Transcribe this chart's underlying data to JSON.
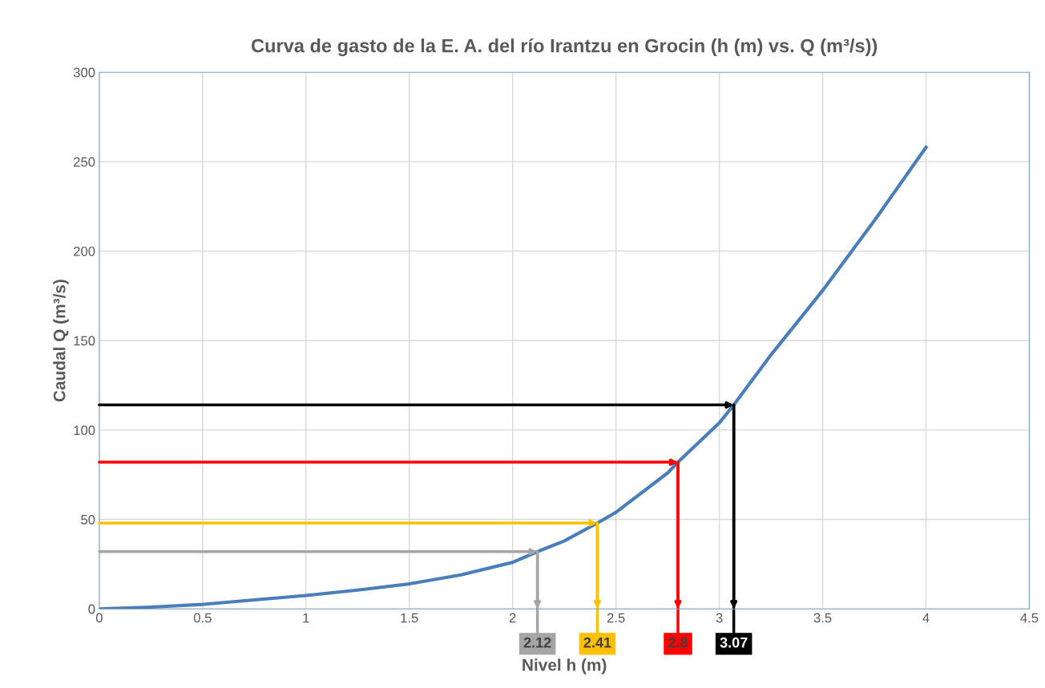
{
  "chart_data": {
    "type": "line",
    "title": "Curva de gasto de la E. A. del río Irantzu en Grocin (h (m) vs. Q (m³/s))",
    "xlabel": "Nivel h (m)",
    "ylabel": "Caudal Q (m³/s)",
    "x": [
      0,
      0.25,
      0.5,
      0.75,
      1,
      1.25,
      1.5,
      1.75,
      2,
      2.12,
      2.25,
      2.41,
      2.5,
      2.75,
      2.8,
      3,
      3.07,
      3.25,
      3.5,
      3.75,
      4
    ],
    "series": [
      {
        "color": "#4a7ebb",
        "values": [
          0,
          1,
          2.5,
          5,
          7.5,
          10.5,
          14,
          19,
          26,
          32,
          38,
          48,
          54,
          76,
          82,
          104,
          114,
          142,
          178,
          217,
          258
        ]
      }
    ],
    "annotations": [
      {
        "text": "2.12",
        "x": 2.12,
        "y": 32
      },
      {
        "text": "2.41",
        "x": 2.41,
        "y": 48
      },
      {
        "text": "2.8",
        "x": 2.8,
        "y": 82
      },
      {
        "text": "3.07",
        "x": 3.07,
        "y": 114
      }
    ],
    "xlim": [
      0,
      4.5
    ],
    "xticks": [
      0,
      0.5,
      1,
      1.5,
      2,
      2.5,
      3,
      3.5,
      4,
      4.5
    ],
    "ylim": [
      0,
      300
    ],
    "yticks": [
      0,
      50,
      100,
      150,
      200,
      250,
      300
    ],
    "grid": true,
    "marker": "none",
    "line_style": "solid",
    "legend": false
  }
}
